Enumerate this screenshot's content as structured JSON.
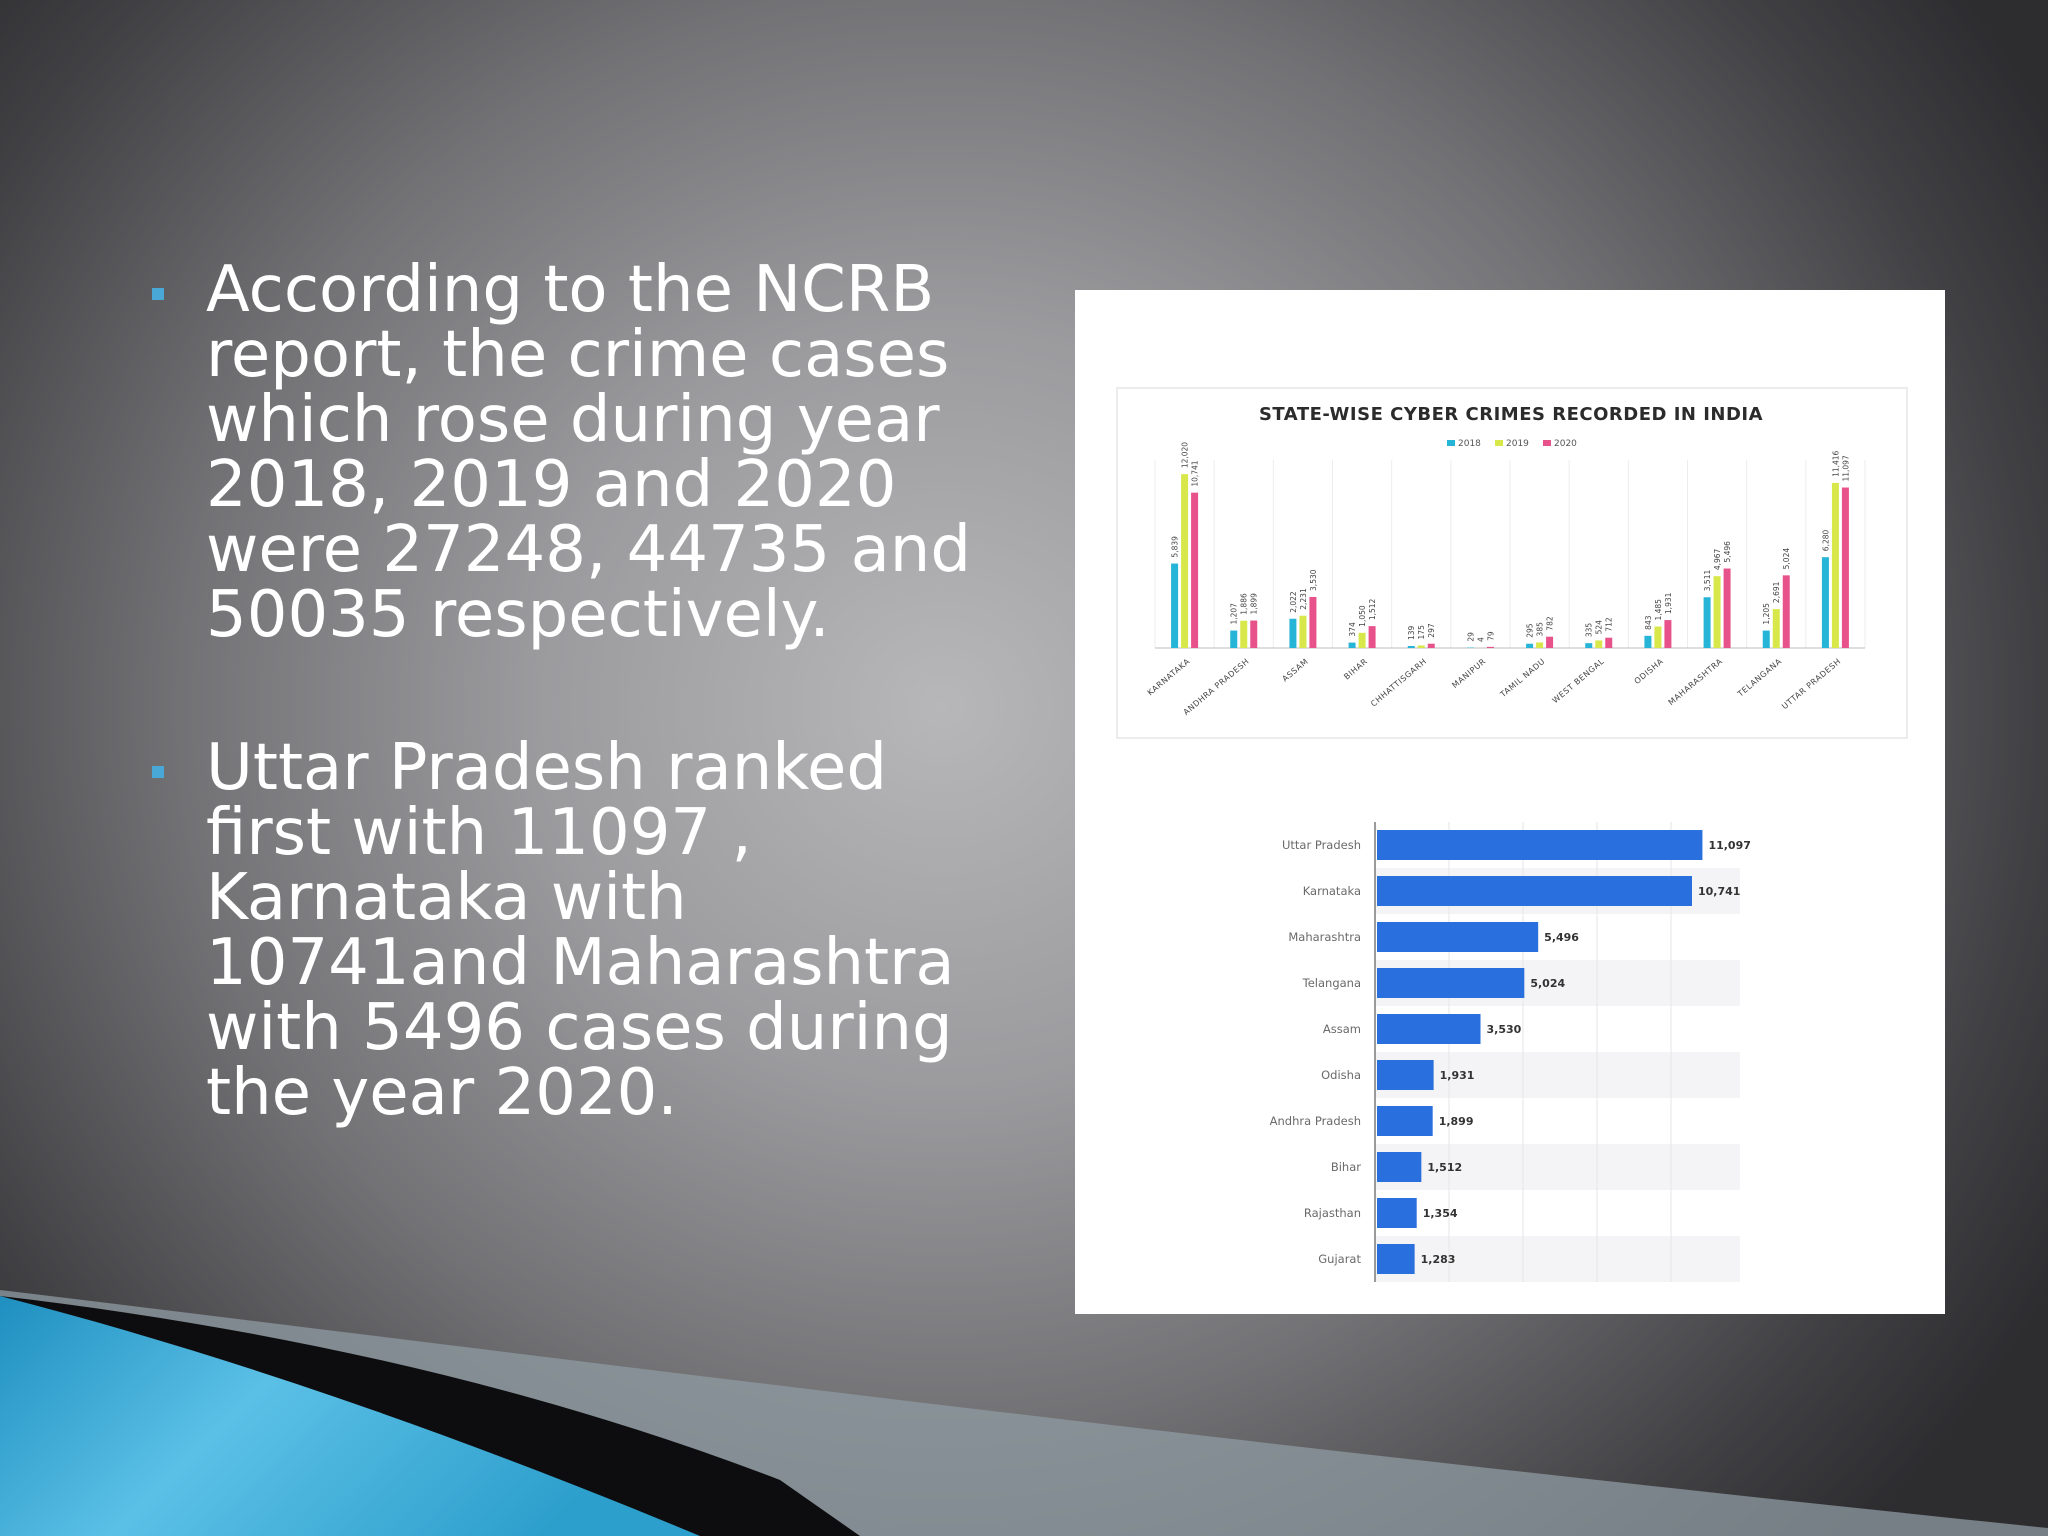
{
  "slide": {
    "bullets": [
      {
        "text": "According to the NCRB report, the crime cases which rose during year 2018, 2019 and 2020 were 27248, 44735 and 50035 respectively."
      },
      {
        "text": "Uttar Pradesh  ranked first with 11097 , Karnataka with 10741and Maharashtra with 5496 cases during the year 2020."
      }
    ],
    "accent_color": "#4aa8d6"
  },
  "chart_data": [
    {
      "type": "bar",
      "title": "STATE-WISE CYBER CRIMES RECORDED IN INDIA",
      "legend": {
        "placement": "top",
        "entries": [
          "2018",
          "2019",
          "2020"
        ]
      },
      "categories": [
        "KARNATAKA",
        "ANDHRA PRADESH",
        "ASSAM",
        "BIHAR",
        "CHHATTISGARH",
        "MANIPUR",
        "TAMIL NADU",
        "WEST BENGAL",
        "ODISHA",
        "MAHARASHTRA",
        "TELANGANA",
        "UTTAR PRADESH"
      ],
      "series": [
        {
          "name": "2018",
          "color": "#26b5d6",
          "values": [
            5839,
            1207,
            2022,
            374,
            139,
            29,
            295,
            335,
            843,
            3511,
            1205,
            6280
          ]
        },
        {
          "name": "2019",
          "color": "#d8e84a",
          "values": [
            12020,
            1886,
            2231,
            1050,
            175,
            4,
            385,
            524,
            1485,
            4967,
            2691,
            11416
          ]
        },
        {
          "name": "2020",
          "color": "#e8528a",
          "values": [
            10741,
            1899,
            3530,
            1512,
            297,
            79,
            782,
            712,
            1931,
            5496,
            5024,
            11097
          ]
        }
      ],
      "grid": true,
      "ylim": [
        0,
        13000
      ]
    },
    {
      "type": "bar",
      "orientation": "horizontal",
      "categories": [
        "Uttar Pradesh",
        "Karnataka",
        "Maharashtra",
        "Telangana",
        "Assam",
        "Odisha",
        "Andhra Pradesh",
        "Bihar",
        "Rajasthan",
        "Gujarat"
      ],
      "values": [
        11097,
        10741,
        5496,
        5024,
        3530,
        1931,
        1899,
        1512,
        1354,
        1283
      ],
      "labels": [
        "11,097",
        "10,741",
        "5,496",
        "5,024",
        "3,530",
        "1,931",
        "1,899",
        "1,512",
        "1,354",
        "1,283"
      ],
      "color": "#2a6fde",
      "grid": true,
      "xlim": [
        0,
        12500
      ]
    }
  ]
}
